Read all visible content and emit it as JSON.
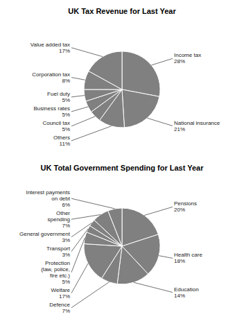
{
  "chart_data": [
    {
      "type": "pie",
      "title": "UK Tax Revenue for Last Year",
      "categories": [
        "Income tax",
        "National insurance",
        "Others",
        "Council tax",
        "Business rates",
        "Fuel duty",
        "Corporation tax",
        "Value added tax"
      ],
      "values": [
        28,
        21,
        11,
        5,
        5,
        5,
        8,
        17
      ],
      "value_labels": [
        "28%",
        "21%",
        "11%",
        "5%",
        "5%",
        "5%",
        "8%",
        "17%"
      ],
      "data_labels": true
    },
    {
      "type": "pie",
      "title": "UK Total Government Spending for Last Year",
      "categories": [
        "Pensions",
        "Health care",
        "Education",
        "Defence",
        "Welfare",
        "Protection\n(law, police,\nfire etc.)",
        "Transport",
        "General government",
        "Other\nspending",
        "Interest payments\non debt"
      ],
      "values": [
        20,
        18,
        14,
        7,
        17,
        5,
        3,
        3,
        7,
        6
      ],
      "value_labels": [
        "20%",
        "18%",
        "14%",
        "7%",
        "17%",
        "5%",
        "3%",
        "3%",
        "7%",
        "6%"
      ],
      "data_labels": true
    }
  ]
}
